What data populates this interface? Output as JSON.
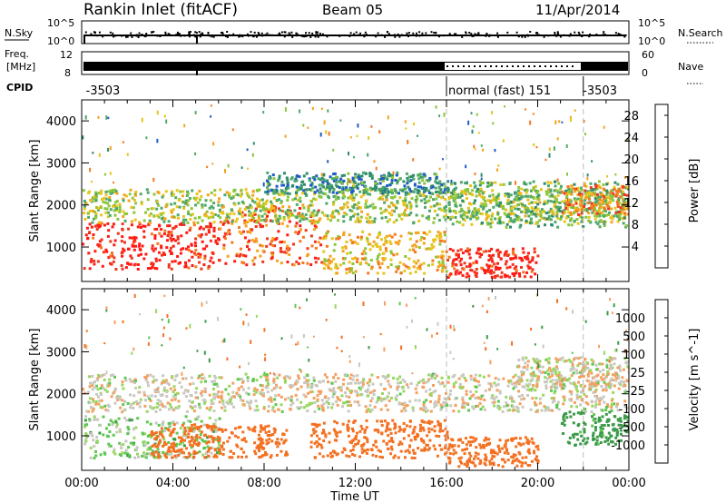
{
  "header": {
    "title": "Rankin Inlet (fitACF)",
    "beam": "Beam 05",
    "date": "11/Apr/2014"
  },
  "strip_panels": {
    "nsky": {
      "label": "N.Sky",
      "tick_top": "10^5",
      "tick_bottom": "10^0"
    },
    "nsearch": {
      "label": "N.Search",
      "tick_top": "10^5",
      "tick_bottom": "10^0"
    },
    "freq": {
      "label_line1": "Freq.",
      "label_line2": "[MHz]",
      "tick_top": "12",
      "tick_bottom": "8"
    },
    "nave": {
      "label": "Nave",
      "tick_top": "60",
      "tick_bottom": "0"
    },
    "cpid": {
      "label": "CPID",
      "segments": [
        {
          "text": "-3503",
          "start_hour": 0.1
        },
        {
          "text": "normal (fast) 151",
          "start_hour": 16.0
        },
        {
          "text": "-3503",
          "start_hour": 21.9
        }
      ],
      "mode_change_hours": [
        16.0,
        22.0
      ]
    }
  },
  "colors": {
    "power_scale": [
      "#1414ff",
      "#1f5cc6",
      "#2e8c6e",
      "#4fa86b",
      "#8cc63a",
      "#e8c41c",
      "#f5a21e",
      "#f4781f",
      "#f0361d",
      "#ff1a14"
    ],
    "velocity_scale": [
      "#2040c8",
      "#2860b8",
      "#3a9a48",
      "#5cc850",
      "#98d860",
      "#c8c8c0",
      "#b8b8b0",
      "#f4a060",
      "#f47020",
      "#ee4a10",
      "#ff2a1a"
    ]
  },
  "chart_data": [
    {
      "type": "heatmap",
      "panel": "power",
      "ylabel": "Slant Range [km]",
      "yticks": [
        "1000",
        "2000",
        "3000",
        "4000"
      ],
      "ylim": [
        180,
        4500
      ],
      "xlim": [
        0,
        24
      ],
      "colorbar": {
        "label": "Power [dB]",
        "ticks": [
          "4",
          "8",
          "12",
          "16",
          "20",
          "24",
          "28"
        ],
        "range": [
          0,
          30
        ]
      },
      "regions": [
        {
          "x": [
            0.0,
            6.0
          ],
          "y": [
            500,
            1600
          ],
          "value": 28
        },
        {
          "x": [
            6.0,
            10.5
          ],
          "y": [
            600,
            2000
          ],
          "value": 24
        },
        {
          "x": [
            10.5,
            16.0
          ],
          "y": [
            400,
            1400
          ],
          "value": 18
        },
        {
          "x": [
            16.0,
            20.0
          ],
          "y": [
            300,
            1000
          ],
          "value": 28
        },
        {
          "x": [
            0.0,
            24.0
          ],
          "y": [
            1600,
            2400
          ],
          "value": 14
        },
        {
          "x": [
            16.0,
            24.0
          ],
          "y": [
            1500,
            2600
          ],
          "value": 12
        },
        {
          "x": [
            8.0,
            16.0
          ],
          "y": [
            2300,
            2800
          ],
          "value": 8
        },
        {
          "x": [
            21.0,
            24.0
          ],
          "y": [
            1800,
            2500
          ],
          "value": 22
        }
      ]
    },
    {
      "type": "heatmap",
      "panel": "velocity",
      "xlabel": "Time UT",
      "ylabel": "Slant Range [km]",
      "xticks": [
        "00:00",
        "04:00",
        "08:00",
        "12:00",
        "16:00",
        "20:00",
        "00:00"
      ],
      "yticks": [
        "1000",
        "2000",
        "3000",
        "4000"
      ],
      "ylim": [
        180,
        4500
      ],
      "xlim": [
        0,
        24
      ],
      "colorbar": {
        "label": "Velocity [m s^-1]",
        "ticks": [
          "1000",
          "500",
          "100",
          "25",
          "-25",
          "-100",
          "-500",
          "-1000"
        ],
        "range": [
          -1000,
          1000
        ]
      },
      "regions": [
        {
          "x": [
            0.0,
            6.0
          ],
          "y": [
            500,
            1500
          ],
          "value": 50
        },
        {
          "x": [
            3.0,
            9.0
          ],
          "y": [
            500,
            1300
          ],
          "value": -300
        },
        {
          "x": [
            0.0,
            24.0
          ],
          "y": [
            1600,
            2500
          ],
          "value": 0
        },
        {
          "x": [
            10.0,
            16.0
          ],
          "y": [
            500,
            1400
          ],
          "value": -200
        },
        {
          "x": [
            16.0,
            20.0
          ],
          "y": [
            300,
            1000
          ],
          "value": -400
        },
        {
          "x": [
            19.0,
            24.0
          ],
          "y": [
            2200,
            2900
          ],
          "value": 0
        },
        {
          "x": [
            21.0,
            24.0
          ],
          "y": [
            800,
            1600
          ],
          "value": 150
        }
      ]
    }
  ]
}
